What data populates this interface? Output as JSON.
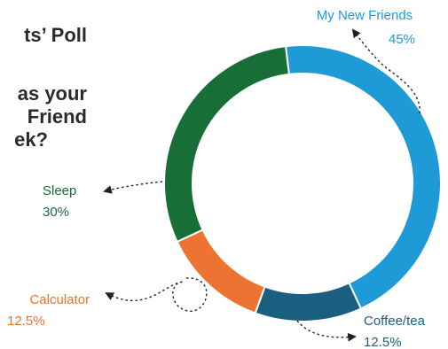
{
  "heading": {
    "line1": "ts’ Poll",
    "line2": "as your",
    "line3": "Friend",
    "line4": "ek?"
  },
  "chart_data": {
    "type": "pie",
    "style": "donut",
    "categories": [
      "My New Friends",
      "Coffee/tea",
      "Calculator",
      "Sleep"
    ],
    "values": [
      45,
      12.5,
      12.5,
      30
    ],
    "value_labels": [
      "45%",
      "12.5%",
      "12.5%",
      "30%"
    ],
    "colors": [
      "#1e9ad6",
      "#1b5f80",
      "#ec7331",
      "#186e37"
    ],
    "label_colors": [
      "#1e9ad6",
      "#1b5f80",
      "#ec7331",
      "#186e37"
    ],
    "start_angle_deg": -7,
    "direction": "clockwise"
  }
}
